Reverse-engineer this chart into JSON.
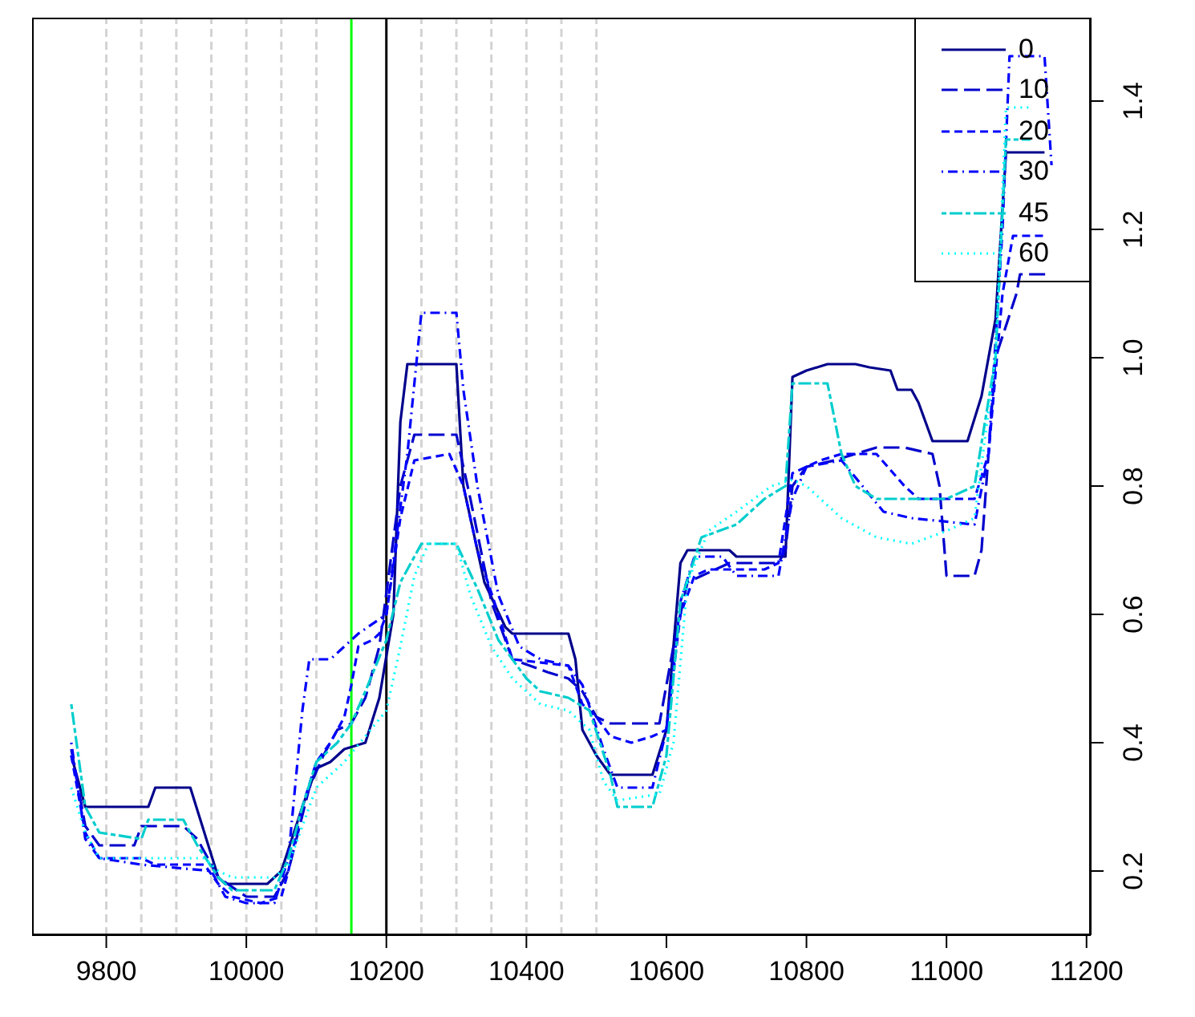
{
  "chart_data": {
    "type": "line",
    "xlim": [
      9694,
      11206
    ],
    "xticks": [
      9800,
      10000,
      10200,
      10400,
      10600,
      10800,
      11000,
      11200
    ],
    "ylim": [
      0.1,
      1.53
    ],
    "yticks": [
      0.2,
      0.4,
      0.6,
      0.8,
      {
        "value": 1,
        "label": "1.0"
      },
      1.2,
      1.4
    ],
    "grid": false,
    "legend": "top right",
    "marker": "none",
    "ref_lines": [
      {
        "axis": "x",
        "value": 9800,
        "color": "#d3d3d3",
        "line_style": "dashed"
      },
      {
        "axis": "x",
        "value": 9850,
        "color": "#d3d3d3",
        "line_style": "dashed"
      },
      {
        "axis": "x",
        "value": 9900,
        "color": "#d3d3d3",
        "line_style": "dashed"
      },
      {
        "axis": "x",
        "value": 9950,
        "color": "#d3d3d3",
        "line_style": "dashed"
      },
      {
        "axis": "x",
        "value": 10000,
        "color": "#d3d3d3",
        "line_style": "dashed"
      },
      {
        "axis": "x",
        "value": 10050,
        "color": "#d3d3d3",
        "line_style": "dashed"
      },
      {
        "axis": "x",
        "value": 10100,
        "color": "#d3d3d3",
        "line_style": "dashed"
      },
      {
        "axis": "x",
        "value": 10150,
        "color": "#00ff00",
        "line_style": "solid"
      },
      {
        "axis": "x",
        "value": 10200,
        "color": "#000000",
        "line_style": "solid"
      },
      {
        "axis": "x",
        "value": 10250,
        "color": "#d3d3d3",
        "line_style": "dashed"
      },
      {
        "axis": "x",
        "value": 10300,
        "color": "#d3d3d3",
        "line_style": "dashed"
      },
      {
        "axis": "x",
        "value": 10350,
        "color": "#d3d3d3",
        "line_style": "dashed"
      },
      {
        "axis": "x",
        "value": 10400,
        "color": "#d3d3d3",
        "line_style": "dashed"
      },
      {
        "axis": "x",
        "value": 10450,
        "color": "#d3d3d3",
        "line_style": "dashed"
      },
      {
        "axis": "x",
        "value": 10500,
        "color": "#d3d3d3",
        "line_style": "dashed"
      }
    ],
    "series": [
      {
        "name": "0",
        "color": "#00008b",
        "line_style": "solid",
        "x": [
          9750,
          9770,
          9860,
          9870,
          9920,
          9960,
          9970,
          10030,
          10050,
          10080,
          10100,
          10120,
          10140,
          10170,
          10190,
          10210,
          10220,
          10230,
          10300,
          10310,
          10340,
          10370,
          10380,
          10460,
          10470,
          10480,
          10500,
          10520,
          10580,
          10600,
          10620,
          10630,
          10690,
          10700,
          10770,
          10780,
          10800,
          10830,
          10870,
          10890,
          10920,
          10930,
          10950,
          10960,
          10980,
          11030,
          11050,
          11070,
          11085,
          11140
        ],
        "values": [
          0.38,
          0.3,
          0.3,
          0.33,
          0.33,
          0.19,
          0.18,
          0.18,
          0.2,
          0.3,
          0.36,
          0.37,
          0.39,
          0.4,
          0.47,
          0.6,
          0.9,
          0.99,
          0.99,
          0.8,
          0.65,
          0.58,
          0.57,
          0.57,
          0.53,
          0.42,
          0.38,
          0.35,
          0.35,
          0.42,
          0.68,
          0.7,
          0.7,
          0.69,
          0.69,
          0.97,
          0.98,
          0.99,
          0.99,
          0.985,
          0.98,
          0.95,
          0.95,
          0.93,
          0.87,
          0.87,
          0.94,
          1.06,
          1.32,
          1.32
        ]
      },
      {
        "name": "10",
        "color": "#0000cd",
        "line_style": "longdash",
        "x": [
          9750,
          9770,
          9790,
          9840,
          9850,
          9910,
          9930,
          9960,
          10000,
          10040,
          10060,
          10090,
          10110,
          10130,
          10150,
          10170,
          10190,
          10220,
          10240,
          10300,
          10320,
          10350,
          10380,
          10430,
          10460,
          10480,
          10500,
          10520,
          10590,
          10610,
          10630,
          10650,
          10690,
          10760,
          10770,
          10780,
          10800,
          10840,
          10870,
          10900,
          10940,
          10980,
          10990,
          11000,
          11040,
          11050,
          11070,
          11100,
          11105,
          11145
        ],
        "values": [
          0.39,
          0.27,
          0.24,
          0.24,
          0.27,
          0.27,
          0.25,
          0.19,
          0.16,
          0.16,
          0.2,
          0.33,
          0.38,
          0.42,
          0.43,
          0.47,
          0.55,
          0.8,
          0.88,
          0.88,
          0.78,
          0.62,
          0.53,
          0.51,
          0.5,
          0.48,
          0.44,
          0.43,
          0.43,
          0.55,
          0.65,
          0.66,
          0.68,
          0.68,
          0.7,
          0.8,
          0.83,
          0.84,
          0.85,
          0.86,
          0.86,
          0.85,
          0.8,
          0.66,
          0.66,
          0.7,
          1.0,
          1.1,
          1.13,
          1.13
        ]
      },
      {
        "name": "20",
        "color": "#0000ff",
        "line_style": "dashed",
        "x": [
          9750,
          9770,
          9790,
          9850,
          9870,
          9940,
          9960,
          9980,
          10020,
          10050,
          10060,
          10080,
          10100,
          10120,
          10140,
          10150,
          10160,
          10180,
          10190,
          10200,
          10220,
          10240,
          10290,
          10310,
          10330,
          10360,
          10380,
          10460,
          10480,
          10500,
          10520,
          10550,
          10580,
          10600,
          10620,
          10640,
          10660,
          10740,
          10760,
          10780,
          10820,
          10850,
          10900,
          10940,
          10960,
          11040,
          11060,
          11080,
          11095,
          11140
        ],
        "values": [
          0.38,
          0.26,
          0.22,
          0.22,
          0.21,
          0.21,
          0.18,
          0.16,
          0.15,
          0.16,
          0.2,
          0.3,
          0.37,
          0.4,
          0.44,
          0.49,
          0.55,
          0.56,
          0.57,
          0.6,
          0.75,
          0.84,
          0.85,
          0.8,
          0.7,
          0.6,
          0.53,
          0.52,
          0.46,
          0.44,
          0.41,
          0.4,
          0.41,
          0.42,
          0.6,
          0.66,
          0.67,
          0.67,
          0.68,
          0.82,
          0.84,
          0.85,
          0.85,
          0.8,
          0.78,
          0.78,
          0.85,
          1.1,
          1.19,
          1.19
        ]
      },
      {
        "name": "30",
        "color": "#0000ff",
        "line_style": "dashdot",
        "x": [
          9750,
          9770,
          9790,
          9850,
          9950,
          9970,
          10000,
          10040,
          10060,
          10080,
          10090,
          10120,
          10140,
          10160,
          10200,
          10230,
          10250,
          10300,
          10310,
          10330,
          10360,
          10390,
          10420,
          10460,
          10480,
          10510,
          10530,
          10580,
          10600,
          10620,
          10640,
          10680,
          10700,
          10760,
          10780,
          10800,
          10850,
          10880,
          10910,
          10950,
          11040,
          11060,
          11080,
          11090,
          11140,
          11150
        ],
        "values": [
          0.4,
          0.25,
          0.22,
          0.21,
          0.2,
          0.16,
          0.15,
          0.15,
          0.22,
          0.45,
          0.53,
          0.53,
          0.55,
          0.57,
          0.6,
          0.85,
          1.07,
          1.07,
          0.95,
          0.8,
          0.63,
          0.55,
          0.53,
          0.52,
          0.49,
          0.39,
          0.33,
          0.33,
          0.42,
          0.62,
          0.69,
          0.69,
          0.66,
          0.66,
          0.78,
          0.83,
          0.84,
          0.8,
          0.76,
          0.75,
          0.74,
          0.85,
          1.2,
          1.47,
          1.47,
          1.3
        ]
      },
      {
        "name": "45",
        "color": "#00cdcd",
        "line_style": "twodash",
        "x": [
          9750,
          9770,
          9790,
          9850,
          9860,
          9910,
          9930,
          9960,
          9980,
          10040,
          10060,
          10080,
          10100,
          10130,
          10150,
          10170,
          10200,
          10220,
          10250,
          10300,
          10330,
          10360,
          10400,
          10420,
          10460,
          10490,
          10520,
          10530,
          10580,
          10600,
          10620,
          10650,
          10700,
          10740,
          10770,
          10780,
          10830,
          10850,
          10870,
          10900,
          11000,
          11040,
          11070,
          11085,
          11120
        ],
        "values": [
          0.46,
          0.3,
          0.26,
          0.25,
          0.28,
          0.28,
          0.24,
          0.19,
          0.17,
          0.17,
          0.22,
          0.3,
          0.37,
          0.4,
          0.43,
          0.48,
          0.56,
          0.65,
          0.71,
          0.71,
          0.64,
          0.56,
          0.5,
          0.48,
          0.47,
          0.45,
          0.35,
          0.3,
          0.3,
          0.38,
          0.62,
          0.72,
          0.74,
          0.78,
          0.8,
          0.96,
          0.96,
          0.85,
          0.8,
          0.78,
          0.78,
          0.8,
          1.0,
          1.34,
          1.34
        ]
      },
      {
        "name": "60",
        "color": "#00ffff",
        "line_style": "dotted",
        "x": [
          9750,
          9770,
          9790,
          9940,
          9960,
          9980,
          10040,
          10060,
          10080,
          10100,
          10140,
          10170,
          10200,
          10220,
          10240,
          10260,
          10300,
          10320,
          10350,
          10380,
          10420,
          10460,
          10490,
          10510,
          10530,
          10590,
          10610,
          10630,
          10660,
          10700,
          10750,
          10780,
          10800,
          10850,
          10900,
          10950,
          11000,
          11040,
          11070,
          11085,
          11120
        ],
        "values": [
          0.33,
          0.26,
          0.22,
          0.22,
          0.2,
          0.19,
          0.19,
          0.21,
          0.27,
          0.33,
          0.37,
          0.41,
          0.45,
          0.55,
          0.66,
          0.71,
          0.71,
          0.63,
          0.55,
          0.5,
          0.46,
          0.45,
          0.42,
          0.34,
          0.31,
          0.32,
          0.4,
          0.65,
          0.73,
          0.76,
          0.8,
          0.81,
          0.8,
          0.75,
          0.72,
          0.71,
          0.73,
          0.75,
          1.0,
          1.39,
          1.39
        ]
      }
    ]
  }
}
